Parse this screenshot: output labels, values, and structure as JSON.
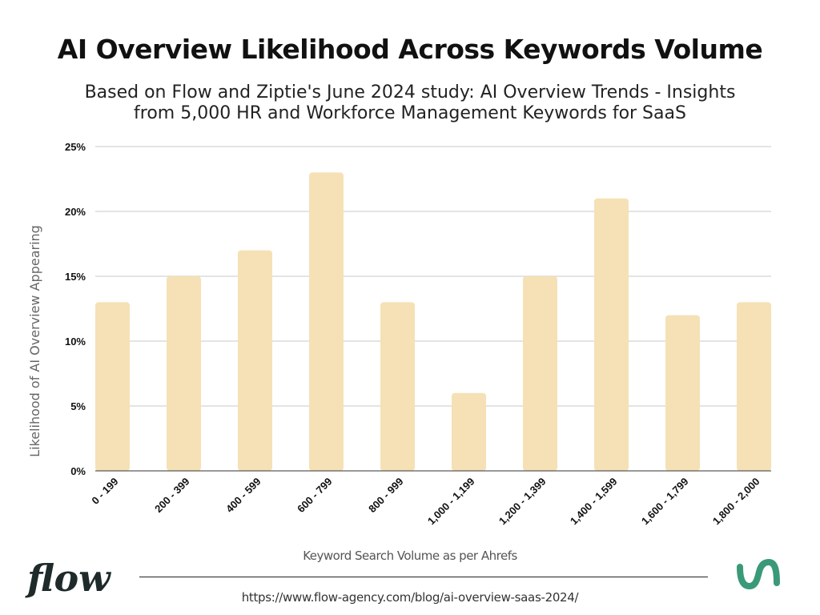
{
  "chart_data": {
    "type": "bar",
    "title": "AI Overview Likelihood Across Keywords Volume",
    "subtitle": "Based on Flow and Ziptie's June 2024 study: AI Overview Trends - Insights from 5,000 HR and Workforce Management Keywords for SaaS",
    "xlabel": "Keyword Search Volume as per Ahrefs",
    "ylabel": "Likelihood of AI Overview Appearing",
    "categories": [
      "0 - 199",
      "200 - 399",
      "400 - 599",
      "600 - 799",
      "800 - 999",
      "1,000 - 1,199",
      "1,200 - 1,399",
      "1,400 - 1,599",
      "1,600 - 1,799",
      "1,800 - 2,000"
    ],
    "values": [
      13,
      15,
      17,
      23,
      13,
      6,
      15,
      21,
      12,
      13
    ],
    "ylim": [
      0,
      25
    ],
    "yticks": [
      "0%",
      "5%",
      "10%",
      "15%",
      "20%",
      "25%"
    ],
    "ytick_values": [
      0,
      5,
      10,
      15,
      20,
      25
    ],
    "grid": true,
    "bar_color": "#f5e1b5",
    "grid_color": "#c8c8c8"
  },
  "footer": {
    "url": "https://www.flow-agency.com/blog/ai-overview-saas-2024/",
    "left_logo": "flow",
    "right_logo_color": "#3a9a78"
  }
}
